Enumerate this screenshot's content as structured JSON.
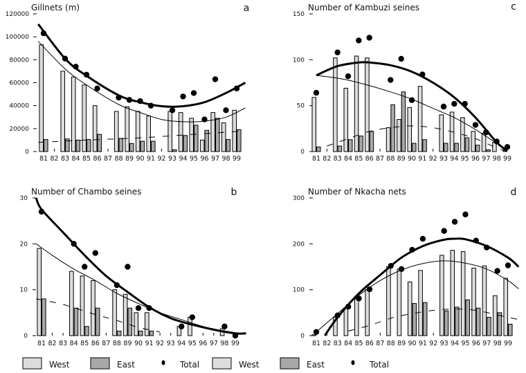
{
  "figure": {
    "legend_groups": [
      {
        "items": [
          {
            "label": "West",
            "kind": "west"
          },
          {
            "label": "East",
            "kind": "east"
          },
          {
            "label": "Total",
            "kind": "total"
          }
        ]
      },
      {
        "items": [
          {
            "label": "West",
            "kind": "west"
          },
          {
            "label": "East",
            "kind": "east"
          },
          {
            "label": "Total",
            "kind": "total"
          }
        ]
      }
    ],
    "colors": {
      "west": "#dcdcdc",
      "east": "#a8a8a8",
      "total": "#000000",
      "outline": "#000000"
    }
  },
  "chart_data": [
    {
      "id": "a",
      "type": "bar",
      "title": "Gillnets (m)",
      "panel_letter": "a",
      "xlabel": "",
      "ylabel": "",
      "categories": [
        "81",
        "82",
        "83",
        "84",
        "85",
        "86",
        "87",
        "88",
        "89",
        "90",
        "91",
        "92",
        "93",
        "94",
        "95",
        "96",
        "97",
        "98",
        "99"
      ],
      "ylim": [
        0,
        120000
      ],
      "yticks": [
        0,
        20000,
        40000,
        60000,
        80000,
        100000,
        120000
      ],
      "ytick_labels": [
        "0",
        "20000",
        "40000",
        "60000",
        "80000",
        "100000",
        "120000"
      ],
      "grid": false,
      "legend": "bottom-left",
      "series": [
        {
          "name": "West",
          "kind": "bar",
          "values": [
            93000,
            null,
            70000,
            65000,
            58000,
            40000,
            null,
            35000,
            39000,
            35000,
            31000,
            null,
            35000,
            34000,
            29000,
            10000,
            34000,
            25000,
            36000
          ]
        },
        {
          "name": "East",
          "kind": "bar",
          "values": [
            10500,
            null,
            11000,
            10000,
            10500,
            15000,
            null,
            11500,
            7000,
            9000,
            9000,
            null,
            1500,
            14000,
            23000,
            18500,
            29000,
            10500,
            19000
          ]
        },
        {
          "name": "Total",
          "kind": "scatter",
          "values": [
            103000,
            null,
            81000,
            74000,
            67000,
            55000,
            null,
            47000,
            45000,
            44000,
            40000,
            null,
            36000,
            48000,
            51000,
            28000,
            63000,
            36000,
            55000
          ]
        },
        {
          "name": "Total trend",
          "kind": "line",
          "style": "thick",
          "points": [
            [
              80.5,
              111000
            ],
            [
              83,
              81000
            ],
            [
              85,
              66000
            ],
            [
              88,
              49000
            ],
            [
              90,
              43000
            ],
            [
              92,
              39500
            ],
            [
              94,
              39500
            ],
            [
              96,
              43000
            ],
            [
              98,
              51000
            ],
            [
              99.8,
              60000
            ]
          ]
        },
        {
          "name": "West trend",
          "kind": "line",
          "style": "thin",
          "points": [
            [
              80.5,
              96000
            ],
            [
              83,
              72000
            ],
            [
              85,
              58000
            ],
            [
              88,
              41000
            ],
            [
              90,
              34000
            ],
            [
              92,
              28000
            ],
            [
              94,
              26000
            ],
            [
              96,
              26500
            ],
            [
              98,
              30000
            ],
            [
              99.8,
              38000
            ]
          ]
        },
        {
          "name": "East trend",
          "kind": "line",
          "style": "dashed",
          "points": [
            [
              80.5,
              8000
            ],
            [
              85,
              10000
            ],
            [
              90,
              12000
            ],
            [
              95,
              15000
            ],
            [
              99.8,
              18000
            ]
          ]
        }
      ]
    },
    {
      "id": "c",
      "type": "bar",
      "title": "Number of Kambuzi seines",
      "panel_letter": "c",
      "xlabel": "",
      "ylabel": "",
      "categories": [
        "81",
        "82",
        "83",
        "84",
        "85",
        "86",
        "87",
        "88",
        "89",
        "90",
        "91",
        "92",
        "93",
        "94",
        "95",
        "96",
        "97",
        "98",
        "99"
      ],
      "ylim": [
        0,
        150
      ],
      "yticks": [
        0,
        50,
        100,
        150
      ],
      "ytick_labels": [
        "0",
        "50",
        "100",
        "150"
      ],
      "grid": false,
      "legend": "bottom-right",
      "series": [
        {
          "name": "West",
          "kind": "bar",
          "values": [
            59,
            null,
            102,
            69,
            104,
            102,
            null,
            26,
            35,
            48,
            71,
            null,
            40,
            43,
            37,
            22,
            20,
            10,
            2
          ]
        },
        {
          "name": "East",
          "kind": "bar",
          "values": [
            5,
            null,
            6,
            13,
            17,
            22,
            null,
            51,
            65,
            9,
            13,
            null,
            9,
            9,
            15,
            7,
            2,
            0,
            0
          ]
        },
        {
          "name": "Total",
          "kind": "scatter",
          "values": [
            64,
            null,
            108,
            82,
            121,
            124,
            null,
            78,
            101,
            56,
            84,
            null,
            49,
            52,
            52,
            29,
            21,
            11,
            5
          ]
        },
        {
          "name": "Total trend",
          "kind": "line",
          "style": "thick",
          "points": [
            [
              81,
              83
            ],
            [
              83,
              93
            ],
            [
              85,
              97
            ],
            [
              86,
              97
            ],
            [
              88,
              94
            ],
            [
              90,
              87
            ],
            [
              92,
              75
            ],
            [
              94,
              59
            ],
            [
              96,
              37
            ],
            [
              98,
              10
            ],
            [
              99,
              1
            ]
          ]
        },
        {
          "name": "West trend",
          "kind": "line",
          "style": "thin",
          "points": [
            [
              81,
              83
            ],
            [
              83,
              80
            ],
            [
              85,
              75
            ],
            [
              88,
              65
            ],
            [
              90,
              57
            ],
            [
              92,
              47
            ],
            [
              94,
              37
            ],
            [
              96,
              24
            ],
            [
              98,
              9
            ],
            [
              99,
              2
            ]
          ]
        },
        {
          "name": "East trend",
          "kind": "line",
          "style": "dashed",
          "points": [
            [
              82,
              6
            ],
            [
              84,
              14
            ],
            [
              86,
              22
            ],
            [
              88,
              26
            ],
            [
              90,
              28
            ],
            [
              92,
              26
            ],
            [
              94,
              21
            ],
            [
              96,
              14
            ],
            [
              98,
              4
            ],
            [
              99,
              0
            ]
          ]
        }
      ]
    },
    {
      "id": "b",
      "type": "bar",
      "title": "Number of Chambo seines",
      "panel_letter": "b",
      "xlabel": "",
      "ylabel": "",
      "categories": [
        "81",
        "82",
        "83",
        "84",
        "85",
        "86",
        "87",
        "88",
        "89",
        "90",
        "91",
        "92",
        "93",
        "94",
        "95",
        "96",
        "97",
        "98",
        "99"
      ],
      "ylim": [
        0,
        30
      ],
      "yticks": [
        0,
        10,
        20,
        30
      ],
      "ytick_labels": [
        "0",
        "10",
        "20",
        "30"
      ],
      "grid": false,
      "legend": "bottom-left",
      "series": [
        {
          "name": "West",
          "kind": "bar",
          "values": [
            19,
            null,
            null,
            14,
            13,
            12,
            null,
            10,
            9,
            5,
            5,
            null,
            null,
            2,
            4,
            null,
            null,
            1.5,
            null
          ]
        },
        {
          "name": "East",
          "kind": "bar",
          "values": [
            8,
            null,
            null,
            6,
            2,
            6,
            null,
            1,
            6,
            1,
            1,
            null,
            null,
            0,
            0,
            null,
            null,
            0,
            null
          ]
        },
        {
          "name": "Total",
          "kind": "scatter",
          "values": [
            27,
            null,
            null,
            20,
            15,
            18,
            null,
            11,
            15,
            6,
            6,
            null,
            null,
            2,
            4,
            null,
            null,
            2,
            0
          ]
        },
        {
          "name": "Total trend",
          "kind": "line",
          "style": "thick",
          "points": [
            [
              80.5,
              30
            ],
            [
              81,
              27.5
            ],
            [
              83,
              22.5
            ],
            [
              85,
              17.5
            ],
            [
              87,
              13
            ],
            [
              89,
              9.5
            ],
            [
              91,
              6.2
            ],
            [
              93,
              3.8
            ],
            [
              95,
              2.4
            ],
            [
              97,
              1.3
            ],
            [
              99,
              0.5
            ],
            [
              100,
              0.5
            ]
          ]
        },
        {
          "name": "West trend",
          "kind": "line",
          "style": "thin",
          "points": [
            [
              80.5,
              20
            ],
            [
              82,
              17.5
            ],
            [
              84,
              14.5
            ],
            [
              86,
              12
            ],
            [
              88,
              9.2
            ],
            [
              90,
              7
            ],
            [
              92,
              5
            ],
            [
              94,
              3.5
            ],
            [
              96,
              2
            ],
            [
              98,
              1
            ],
            [
              99.5,
              0.5
            ]
          ]
        },
        {
          "name": "East trend",
          "kind": "line",
          "style": "dashed",
          "points": [
            [
              80.5,
              8
            ],
            [
              83,
              6.8
            ],
            [
              86,
              4.6
            ],
            [
              88,
              3.3
            ],
            [
              90,
              1.8
            ],
            [
              92,
              0.8
            ]
          ]
        }
      ]
    },
    {
      "id": "d",
      "type": "bar",
      "title": "Number of Nkacha nets",
      "panel_letter": "d",
      "xlabel": "",
      "ylabel": "",
      "categories": [
        "81",
        "82",
        "83",
        "84",
        "85",
        "86",
        "87",
        "88",
        "89",
        "90",
        "91",
        "92",
        "93",
        "94",
        "95",
        "96",
        "97",
        "98",
        "99"
      ],
      "ylim": [
        0,
        300
      ],
      "yticks": [
        0,
        100,
        200,
        300
      ],
      "ytick_labels": [
        "0",
        "100",
        "200",
        "300"
      ],
      "grid": false,
      "legend": "bottom-right",
      "series": [
        {
          "name": "West",
          "kind": "bar",
          "values": [
            2,
            null,
            40,
            60,
            80,
            100,
            null,
            150,
            145,
            117,
            142,
            null,
            175,
            186,
            183,
            147,
            152,
            87,
            125
          ]
        },
        {
          "name": "East",
          "kind": "bar",
          "values": [
            0,
            null,
            0,
            0,
            0,
            0,
            null,
            0,
            0,
            70,
            72,
            null,
            54,
            62,
            78,
            60,
            40,
            50,
            25
          ]
        },
        {
          "name": "Total",
          "kind": "scatter",
          "values": [
            8,
            null,
            44,
            63,
            81,
            101,
            null,
            152,
            145,
            187,
            211,
            null,
            228,
            248,
            264,
            207,
            192,
            141,
            153
          ]
        },
        {
          "name": "Total trend",
          "kind": "line",
          "style": "thick",
          "points": [
            [
              81.8,
              0
            ],
            [
              83,
              40
            ],
            [
              85,
              92
            ],
            [
              87,
              132
            ],
            [
              89,
              170
            ],
            [
              91,
              195
            ],
            [
              93,
              209
            ],
            [
              94,
              211
            ],
            [
              95,
              210
            ],
            [
              97,
              195
            ],
            [
              99,
              170
            ],
            [
              100,
              150
            ]
          ]
        },
        {
          "name": "West trend",
          "kind": "line",
          "style": "thin",
          "points": [
            [
              81,
              8
            ],
            [
              83,
              48
            ],
            [
              85,
              88
            ],
            [
              87,
              120
            ],
            [
              89,
              143
            ],
            [
              91,
              157
            ],
            [
              93,
              163
            ],
            [
              95,
              158
            ],
            [
              97,
              145
            ],
            [
              99,
              120
            ],
            [
              100,
              102
            ]
          ]
        },
        {
          "name": "East trend",
          "kind": "line",
          "style": "dashed",
          "points": [
            [
              84,
              10
            ],
            [
              86,
              22
            ],
            [
              88,
              38
            ],
            [
              90,
              48
            ],
            [
              92,
              55
            ],
            [
              94,
              58
            ],
            [
              96,
              55
            ],
            [
              98,
              45
            ],
            [
              100,
              35
            ]
          ]
        }
      ]
    }
  ]
}
